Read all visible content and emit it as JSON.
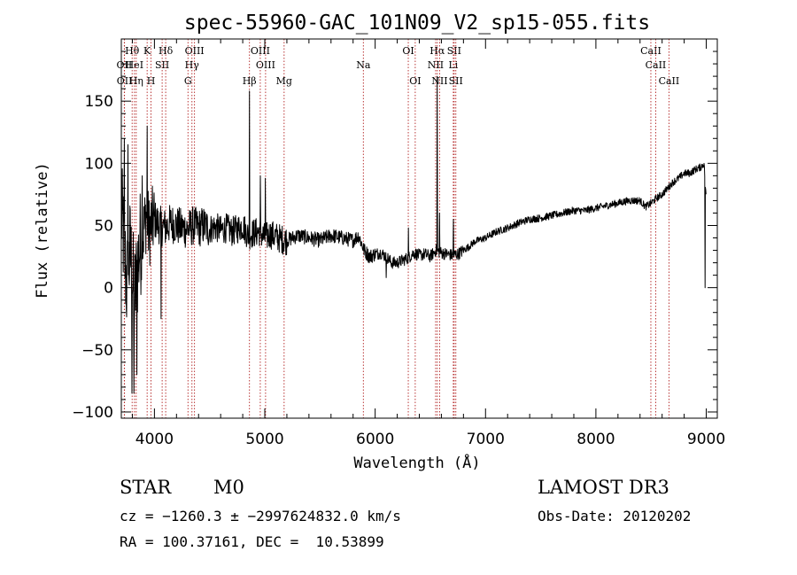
{
  "chart_data": {
    "type": "line",
    "title": "spec-55960-GAC_101N09_V2_sp15-055.fits",
    "xlabel": "Wavelength (Å)",
    "ylabel": "Flux (relative)",
    "xlim": [
      3700,
      9100
    ],
    "ylim": [
      -105,
      200
    ],
    "xticks": [
      4000,
      5000,
      6000,
      7000,
      8000,
      9000
    ],
    "yticks": [
      -100,
      -50,
      0,
      50,
      100,
      150
    ],
    "xtick_labels": [
      "4000",
      "5000",
      "6000",
      "7000",
      "8000",
      "9000"
    ],
    "ytick_labels": [
      "−100",
      "−50",
      "0",
      "50",
      "100",
      "150"
    ],
    "grid": false,
    "line_color": "#000000",
    "marker_color": "#b22222",
    "spectrum_anchors": {
      "x": [
        3700,
        3720,
        3750,
        3780,
        3800,
        3820,
        3850,
        3870,
        3900,
        3930,
        3950,
        3970,
        4000,
        4050,
        4100,
        4150,
        4200,
        4250,
        4300,
        4350,
        4400,
        4450,
        4500,
        4550,
        4600,
        4650,
        4700,
        4750,
        4800,
        4850,
        4900,
        4950,
        5000,
        5050,
        5100,
        5150,
        5200,
        5300,
        5400,
        5500,
        5600,
        5700,
        5800,
        5850,
        5900,
        5950,
        6000,
        6050,
        6100,
        6150,
        6200,
        6250,
        6300,
        6350,
        6400,
        6450,
        6500,
        6550,
        6600,
        6650,
        6700,
        6750,
        6800,
        6850,
        6900,
        7000,
        7100,
        7200,
        7300,
        7400,
        7500,
        7600,
        7700,
        7800,
        7900,
        8000,
        8100,
        8200,
        8300,
        8400,
        8450,
        8500,
        8550,
        8600,
        8650,
        8700,
        8750,
        8800,
        8850,
        8900,
        8950,
        8980,
        9000
      ],
      "y": [
        60,
        40,
        0,
        30,
        10,
        -10,
        20,
        35,
        45,
        60,
        45,
        50,
        55,
        50,
        48,
        52,
        50,
        48,
        47,
        50,
        48,
        50,
        47,
        49,
        46,
        48,
        45,
        47,
        50,
        42,
        44,
        45,
        40,
        43,
        41,
        39,
        38,
        42,
        40,
        38,
        42,
        40,
        38,
        42,
        30,
        25,
        27,
        28,
        25,
        20,
        20,
        22,
        24,
        28,
        26,
        27,
        25,
        30,
        28,
        27,
        26,
        27,
        30,
        33,
        37,
        40,
        45,
        48,
        52,
        55,
        56,
        58,
        60,
        62,
        62,
        64,
        66,
        68,
        70,
        70,
        65,
        68,
        72,
        75,
        80,
        85,
        88,
        92,
        92,
        95,
        97,
        100,
        70
      ]
    },
    "spectrum_features": [
      {
        "x": 3728,
        "y": 120
      },
      {
        "x": 3760,
        "y": 115
      },
      {
        "x": 3795,
        "y": -85
      },
      {
        "x": 3815,
        "y": -85
      },
      {
        "x": 3840,
        "y": -70
      },
      {
        "x": 3890,
        "y": 90
      },
      {
        "x": 3933,
        "y": 130
      },
      {
        "x": 4060,
        "y": -25
      },
      {
        "x": 4860,
        "y": 158
      },
      {
        "x": 4960,
        "y": 90
      },
      {
        "x": 5005,
        "y": 88
      },
      {
        "x": 6100,
        "y": 8
      },
      {
        "x": 6300,
        "y": 48
      },
      {
        "x": 6563,
        "y": 170
      },
      {
        "x": 6584,
        "y": 60
      },
      {
        "x": 6710,
        "y": 55
      },
      {
        "x": 8990,
        "y": 0
      }
    ],
    "line_markers": [
      {
        "label": "OII",
        "x": 3727,
        "row": 2
      },
      {
        "label": "OII",
        "x": 3729,
        "row": 3
      },
      {
        "label": "Hθ",
        "x": 3798,
        "row": 1
      },
      {
        "label": "HeI",
        "x": 3819,
        "row": 2
      },
      {
        "label": "Hη",
        "x": 3835,
        "row": 3
      },
      {
        "label": "K",
        "x": 3934,
        "row": 1
      },
      {
        "label": "SII",
        "x": 4070,
        "row": 2
      },
      {
        "label": "H",
        "x": 3969,
        "row": 3
      },
      {
        "label": "Hδ",
        "x": 4102,
        "row": 1
      },
      {
        "label": "OIII",
        "x": 4363,
        "row": 1
      },
      {
        "label": "Hγ",
        "x": 4340,
        "row": 2
      },
      {
        "label": "G",
        "x": 4304,
        "row": 3
      },
      {
        "label": "OIII",
        "x": 4959,
        "row": 1
      },
      {
        "label": "OIII",
        "x": 5007,
        "row": 2
      },
      {
        "label": "Hβ",
        "x": 4861,
        "row": 3
      },
      {
        "label": "Mg",
        "x": 5175,
        "row": 3
      },
      {
        "label": "Na",
        "x": 5893,
        "row": 2
      },
      {
        "label": "OI",
        "x": 6300,
        "row": 1
      },
      {
        "label": "OI",
        "x": 6363,
        "row": 3
      },
      {
        "label": "Hα",
        "x": 6563,
        "row": 1
      },
      {
        "label": "NII",
        "x": 6548,
        "row": 2
      },
      {
        "label": "NII",
        "x": 6584,
        "row": 3
      },
      {
        "label": "SII",
        "x": 6716,
        "row": 1
      },
      {
        "label": "Li",
        "x": 6708,
        "row": 2
      },
      {
        "label": "SII",
        "x": 6731,
        "row": 3
      },
      {
        "label": "CaII",
        "x": 8498,
        "row": 1
      },
      {
        "label": "CaII",
        "x": 8542,
        "row": 2
      },
      {
        "label": "CaII",
        "x": 8662,
        "row": 3
      }
    ]
  },
  "info": {
    "object_class": "STAR",
    "subclass": "M0",
    "survey": "LAMOST DR3",
    "cz_line": "cz = −1260.3 ± −2997624832.0 km/s",
    "obs_date": "Obs-Date: 20120202",
    "coords": "RA = 100.37161, DEC =  10.53899"
  }
}
